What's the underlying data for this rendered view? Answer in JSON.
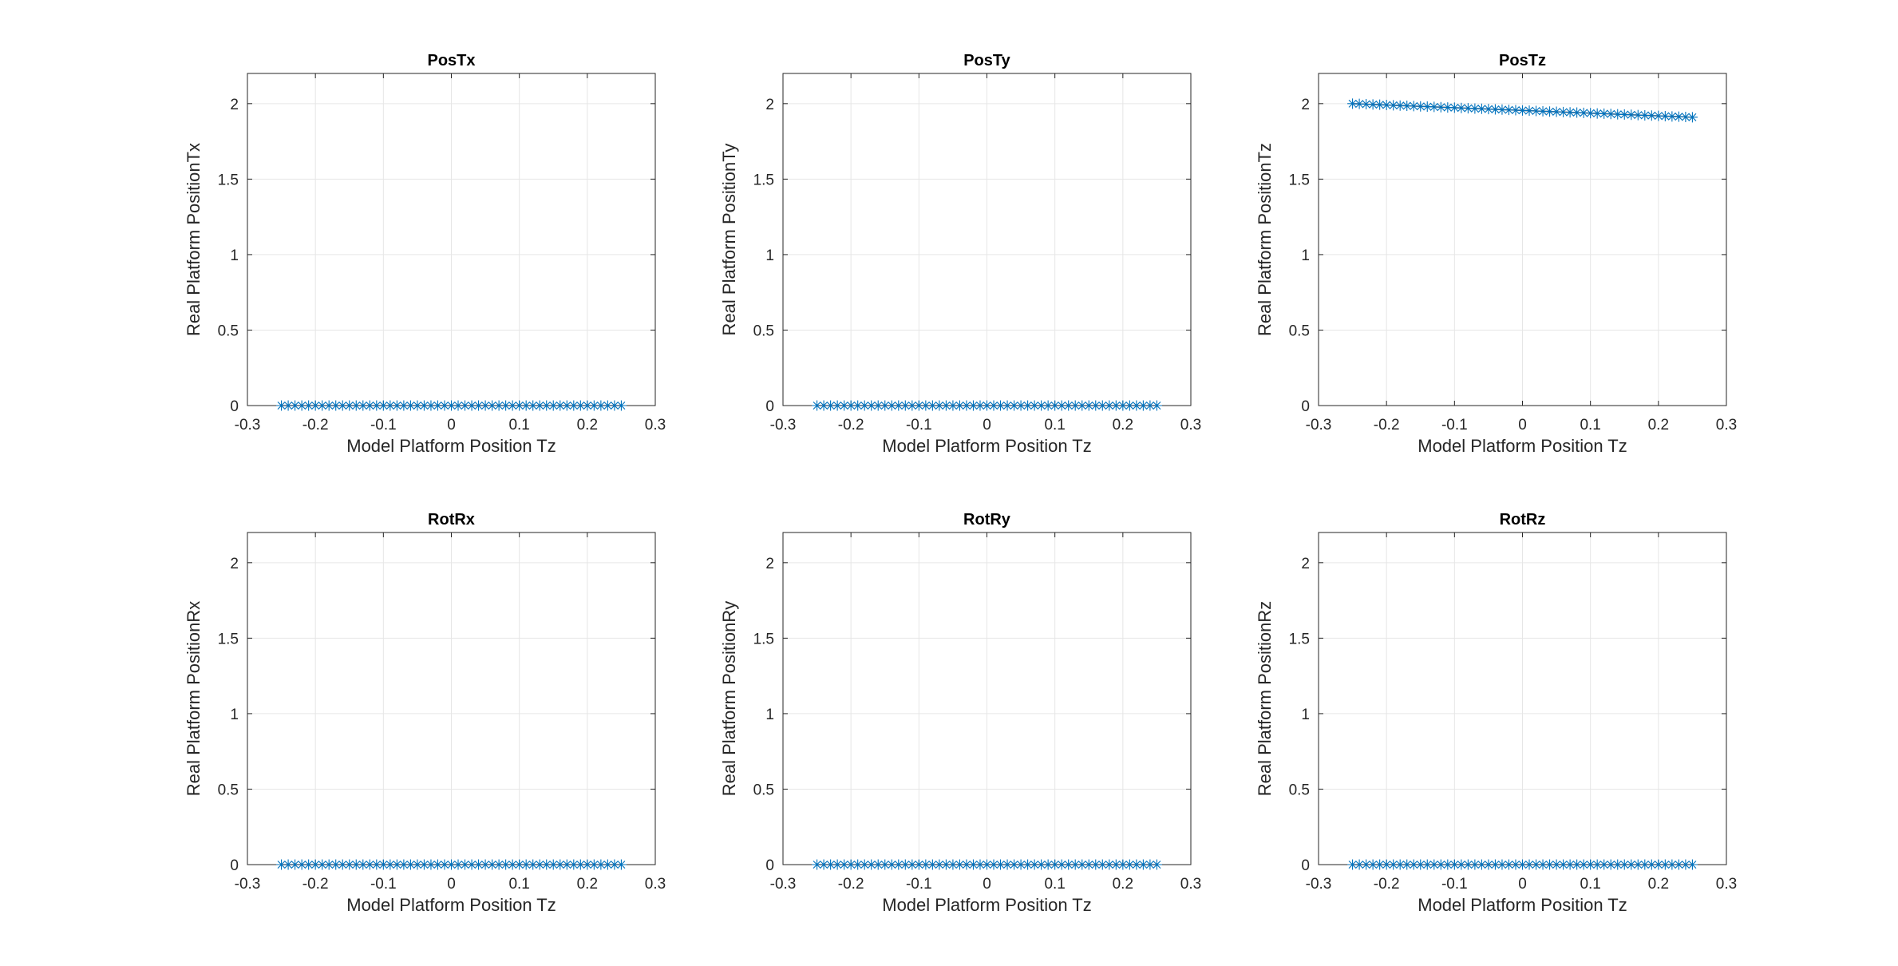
{
  "figure": {
    "background": "#ffffff"
  },
  "chart_data": [
    {
      "type": "scatter",
      "title": "PosTx",
      "xlabel": "Model Platform Position Tz",
      "ylabel": "Real Platform PositionTx",
      "xlim": [
        -0.3,
        0.3
      ],
      "ylim": [
        0,
        2.2
      ],
      "xticks": [
        "-0.3",
        "-0.2",
        "-0.1",
        "0",
        "0.1",
        "0.2",
        "0.3"
      ],
      "yticks": [
        "0",
        "0.5",
        "1",
        "1.5",
        "2"
      ],
      "grid": true,
      "x_range": [
        -0.25,
        0.25
      ],
      "n_points": 51,
      "y_start": 0,
      "y_end": 0
    },
    {
      "type": "scatter",
      "title": "PosTy",
      "xlabel": "Model Platform Position Tz",
      "ylabel": "Real Platform PositionTy",
      "xlim": [
        -0.3,
        0.3
      ],
      "ylim": [
        0,
        2.2
      ],
      "xticks": [
        "-0.3",
        "-0.2",
        "-0.1",
        "0",
        "0.1",
        "0.2",
        "0.3"
      ],
      "yticks": [
        "0",
        "0.5",
        "1",
        "1.5",
        "2"
      ],
      "grid": true,
      "x_range": [
        -0.25,
        0.25
      ],
      "n_points": 51,
      "y_start": 0,
      "y_end": 0
    },
    {
      "type": "scatter",
      "title": "PosTz",
      "xlabel": "Model Platform Position Tz",
      "ylabel": "Real Platform PositionTz",
      "xlim": [
        -0.3,
        0.3
      ],
      "ylim": [
        0,
        2.2
      ],
      "xticks": [
        "-0.3",
        "-0.2",
        "-0.1",
        "0",
        "0.1",
        "0.2",
        "0.3"
      ],
      "yticks": [
        "0",
        "0.5",
        "1",
        "1.5",
        "2"
      ],
      "grid": true,
      "x_range": [
        -0.25,
        0.25
      ],
      "n_points": 51,
      "y_start": 2.0,
      "y_end": 1.91
    },
    {
      "type": "scatter",
      "title": "RotRx",
      "xlabel": "Model Platform Position Tz",
      "ylabel": "Real Platform PositionRx",
      "xlim": [
        -0.3,
        0.3
      ],
      "ylim": [
        0,
        2.2
      ],
      "xticks": [
        "-0.3",
        "-0.2",
        "-0.1",
        "0",
        "0.1",
        "0.2",
        "0.3"
      ],
      "yticks": [
        "0",
        "0.5",
        "1",
        "1.5",
        "2"
      ],
      "grid": true,
      "x_range": [
        -0.25,
        0.25
      ],
      "n_points": 51,
      "y_start": 0,
      "y_end": 0
    },
    {
      "type": "scatter",
      "title": "RotRy",
      "xlabel": "Model Platform Position Tz",
      "ylabel": "Real Platform PositionRy",
      "xlim": [
        -0.3,
        0.3
      ],
      "ylim": [
        0,
        2.2
      ],
      "xticks": [
        "-0.3",
        "-0.2",
        "-0.1",
        "0",
        "0.1",
        "0.2",
        "0.3"
      ],
      "yticks": [
        "0",
        "0.5",
        "1",
        "1.5",
        "2"
      ],
      "grid": true,
      "x_range": [
        -0.25,
        0.25
      ],
      "n_points": 51,
      "y_start": 0,
      "y_end": 0
    },
    {
      "type": "scatter",
      "title": "RotRz",
      "xlabel": "Model Platform Position Tz",
      "ylabel": "Real Platform PositionRz",
      "xlim": [
        -0.3,
        0.3
      ],
      "ylim": [
        0,
        2.2
      ],
      "xticks": [
        "-0.3",
        "-0.2",
        "-0.1",
        "0",
        "0.1",
        "0.2",
        "0.3"
      ],
      "yticks": [
        "0",
        "0.5",
        "1",
        "1.5",
        "2"
      ],
      "grid": true,
      "x_range": [
        -0.25,
        0.25
      ],
      "n_points": 51,
      "y_start": 0,
      "y_end": 0
    }
  ],
  "series_style": {
    "line_color": "#d95319",
    "marker_color": "#0072bd",
    "marker": "asterisk",
    "grid_color": "#e6e6e6",
    "axis_color": "#262626"
  }
}
